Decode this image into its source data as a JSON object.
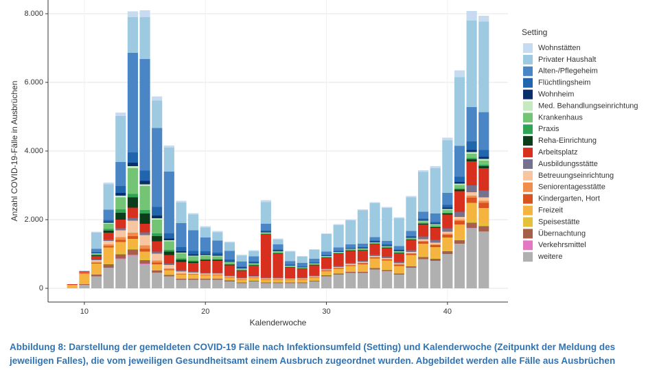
{
  "chart_data": {
    "type": "stacked-bar",
    "x_label": "Kalenderwoche",
    "y_label": "Anzahl COVID-19-Fälle in Ausbrüchen",
    "legend_title": "Setting",
    "caption": "Abbildung 8: Darstellung der gemeldeten COVID-19 Fälle nach Infektionsumfeld (Setting) und Kalenderwoche (Zeitpunkt der Meldung des jeweiligen Falles), die vom jeweiligen Gesundheitsamt einem Ausbruch zugeordnet wurden. Abgebildet werden alle Fälle aus Ausbrüchen",
    "x": [
      9,
      10,
      11,
      12,
      13,
      14,
      15,
      16,
      17,
      18,
      19,
      20,
      21,
      22,
      23,
      24,
      25,
      26,
      27,
      28,
      29,
      30,
      31,
      32,
      33,
      34,
      35,
      36,
      37,
      38,
      39,
      40,
      41,
      42,
      43
    ],
    "xlim": [
      7,
      45
    ],
    "xticks": [
      10,
      20,
      30,
      40
    ],
    "ylim": [
      -400,
      8400
    ],
    "yticks": [
      {
        "value": 0,
        "label": "0"
      },
      {
        "value": 2000,
        "label": "2.000"
      },
      {
        "value": 4000,
        "label": "4.000"
      },
      {
        "value": 6000,
        "label": "6.000"
      },
      {
        "value": 8000,
        "label": "8.000"
      }
    ],
    "grid": true,
    "legend": "right",
    "series": [
      {
        "name": "Wohnstätten",
        "color": "#c6dbef",
        "values": [
          0,
          20,
          30,
          50,
          100,
          170,
          200,
          120,
          60,
          50,
          40,
          40,
          40,
          30,
          30,
          30,
          60,
          30,
          20,
          20,
          20,
          20,
          30,
          30,
          30,
          30,
          30,
          30,
          40,
          50,
          60,
          80,
          200,
          280,
          170
        ]
      },
      {
        "name": "Privater Haushalt",
        "color": "#9ecae1",
        "values": [
          0,
          0,
          470,
          740,
          1340,
          1040,
          1220,
          800,
          700,
          600,
          460,
          290,
          240,
          240,
          170,
          150,
          630,
          140,
          280,
          180,
          260,
          510,
          650,
          700,
          970,
          990,
          960,
          810,
          980,
          1160,
          1320,
          1530,
          2000,
          2520,
          2640
        ]
      },
      {
        "name": "Alten-/Pflegeheim",
        "color": "#4a86c5",
        "values": [
          0,
          0,
          100,
          300,
          700,
          2900,
          3250,
          2300,
          1800,
          700,
          600,
          400,
          350,
          250,
          150,
          150,
          200,
          150,
          100,
          100,
          100,
          100,
          100,
          100,
          100,
          100,
          100,
          100,
          150,
          200,
          250,
          350,
          900,
          1000,
          1100
        ]
      },
      {
        "name": "Flüchtlingsheim",
        "color": "#2166ac",
        "values": [
          0,
          0,
          20,
          50,
          200,
          300,
          300,
          250,
          150,
          120,
          100,
          80,
          60,
          50,
          30,
          30,
          30,
          30,
          20,
          20,
          20,
          20,
          20,
          20,
          30,
          30,
          30,
          30,
          30,
          40,
          40,
          80,
          150,
          250,
          200
        ]
      },
      {
        "name": "Wohnheim",
        "color": "#08306b",
        "values": [
          0,
          0,
          10,
          30,
          80,
          100,
          100,
          80,
          50,
          40,
          40,
          30,
          30,
          20,
          20,
          20,
          20,
          20,
          10,
          10,
          10,
          10,
          10,
          10,
          10,
          20,
          20,
          20,
          20,
          20,
          20,
          40,
          50,
          60,
          60
        ]
      },
      {
        "name": "Med. Behandlungseinrichtung",
        "color": "#c7e9c0",
        "values": [
          0,
          0,
          10,
          30,
          50,
          60,
          50,
          40,
          30,
          20,
          20,
          20,
          20,
          10,
          10,
          10,
          10,
          10,
          10,
          10,
          10,
          10,
          10,
          10,
          10,
          10,
          10,
          10,
          10,
          20,
          20,
          30,
          40,
          50,
          50
        ]
      },
      {
        "name": "Krankenhaus",
        "color": "#74c476",
        "values": [
          0,
          10,
          30,
          150,
          350,
          750,
          700,
          400,
          250,
          150,
          120,
          100,
          80,
          60,
          40,
          40,
          40,
          40,
          30,
          20,
          30,
          30,
          30,
          30,
          30,
          30,
          30,
          30,
          30,
          50,
          50,
          80,
          100,
          120,
          120
        ]
      },
      {
        "name": "Praxis",
        "color": "#31a354",
        "values": [
          0,
          0,
          20,
          50,
          100,
          100,
          100,
          80,
          50,
          40,
          30,
          20,
          20,
          10,
          10,
          10,
          10,
          10,
          10,
          10,
          10,
          10,
          10,
          10,
          10,
          10,
          10,
          10,
          10,
          20,
          20,
          20,
          30,
          40,
          40
        ]
      },
      {
        "name": "Reha-Einrichtung",
        "color": "#0b3d1a",
        "values": [
          0,
          0,
          20,
          60,
          200,
          300,
          300,
          150,
          100,
          60,
          40,
          30,
          30,
          20,
          10,
          10,
          10,
          10,
          10,
          10,
          10,
          10,
          10,
          10,
          10,
          10,
          10,
          10,
          10,
          20,
          20,
          30,
          50,
          60,
          60
        ]
      },
      {
        "name": "Arbeitsplatz",
        "color": "#d7301f",
        "values": [
          20,
          30,
          100,
          200,
          250,
          300,
          250,
          300,
          250,
          250,
          250,
          350,
          350,
          300,
          200,
          300,
          1250,
          700,
          300,
          250,
          300,
          300,
          350,
          350,
          300,
          300,
          250,
          250,
          300,
          350,
          350,
          400,
          600,
          700,
          650
        ]
      },
      {
        "name": "Ausbildungsstätte",
        "color": "#76718c",
        "values": [
          0,
          10,
          20,
          40,
          60,
          80,
          80,
          60,
          40,
          30,
          30,
          20,
          20,
          20,
          20,
          20,
          20,
          20,
          20,
          20,
          20,
          30,
          30,
          30,
          30,
          40,
          40,
          40,
          50,
          80,
          80,
          100,
          150,
          200,
          200
        ]
      },
      {
        "name": "Betreuungseinrichtung",
        "color": "#f7c59f",
        "values": [
          0,
          10,
          50,
          100,
          200,
          350,
          300,
          200,
          100,
          60,
          40,
          30,
          30,
          20,
          20,
          20,
          20,
          20,
          20,
          20,
          20,
          20,
          20,
          30,
          30,
          30,
          30,
          30,
          40,
          50,
          50,
          60,
          80,
          100,
          100
        ]
      },
      {
        "name": "Seniorentagesstätte",
        "color": "#f08d4b",
        "values": [
          0,
          10,
          30,
          50,
          80,
          100,
          100,
          60,
          30,
          20,
          10,
          10,
          10,
          10,
          10,
          10,
          10,
          10,
          10,
          10,
          10,
          10,
          10,
          10,
          10,
          10,
          10,
          10,
          10,
          20,
          20,
          30,
          40,
          60,
          60
        ]
      },
      {
        "name": "Kindergarten, Hort",
        "color": "#d9531e",
        "values": [
          0,
          10,
          20,
          40,
          60,
          80,
          80,
          50,
          20,
          10,
          10,
          10,
          10,
          10,
          10,
          10,
          10,
          10,
          10,
          10,
          10,
          20,
          20,
          20,
          30,
          30,
          30,
          40,
          40,
          60,
          60,
          80,
          100,
          150,
          150
        ]
      },
      {
        "name": "Freizeit",
        "color": "#f5b440",
        "values": [
          100,
          300,
          300,
          450,
          300,
          250,
          200,
          150,
          120,
          100,
          100,
          80,
          80,
          60,
          60,
          60,
          60,
          60,
          60,
          70,
          80,
          100,
          120,
          150,
          200,
          250,
          250,
          200,
          300,
          350,
          300,
          350,
          400,
          500,
          450
        ]
      },
      {
        "name": "Speisestätte",
        "color": "#e3c23a",
        "values": [
          0,
          0,
          20,
          40,
          60,
          60,
          50,
          30,
          20,
          20,
          20,
          20,
          20,
          20,
          20,
          20,
          20,
          20,
          10,
          10,
          10,
          20,
          20,
          20,
          20,
          30,
          30,
          20,
          30,
          40,
          40,
          50,
          60,
          80,
          80
        ]
      },
      {
        "name": "Übernachtung",
        "color": "#a6604a",
        "values": [
          0,
          20,
          50,
          100,
          120,
          150,
          100,
          60,
          40,
          30,
          30,
          30,
          30,
          30,
          20,
          20,
          20,
          20,
          20,
          20,
          20,
          30,
          30,
          30,
          30,
          40,
          30,
          30,
          40,
          60,
          60,
          80,
          100,
          150,
          150
        ]
      },
      {
        "name": "Verkehrsmittel",
        "color": "#e377c2",
        "values": [
          0,
          0,
          0,
          0,
          20,
          30,
          20,
          10,
          0,
          0,
          0,
          0,
          0,
          0,
          0,
          0,
          0,
          0,
          0,
          0,
          0,
          0,
          0,
          0,
          0,
          0,
          0,
          0,
          0,
          0,
          0,
          0,
          0,
          10,
          10
        ]
      },
      {
        "name": "weitere",
        "color": "#b0b0b0",
        "values": [
          0,
          100,
          350,
          600,
          850,
          950,
          700,
          450,
          350,
          250,
          250,
          250,
          250,
          200,
          150,
          200,
          150,
          150,
          150,
          150,
          200,
          350,
          400,
          450,
          450,
          550,
          500,
          400,
          600,
          850,
          800,
          1000,
          1300,
          1750,
          1650
        ]
      }
    ]
  }
}
